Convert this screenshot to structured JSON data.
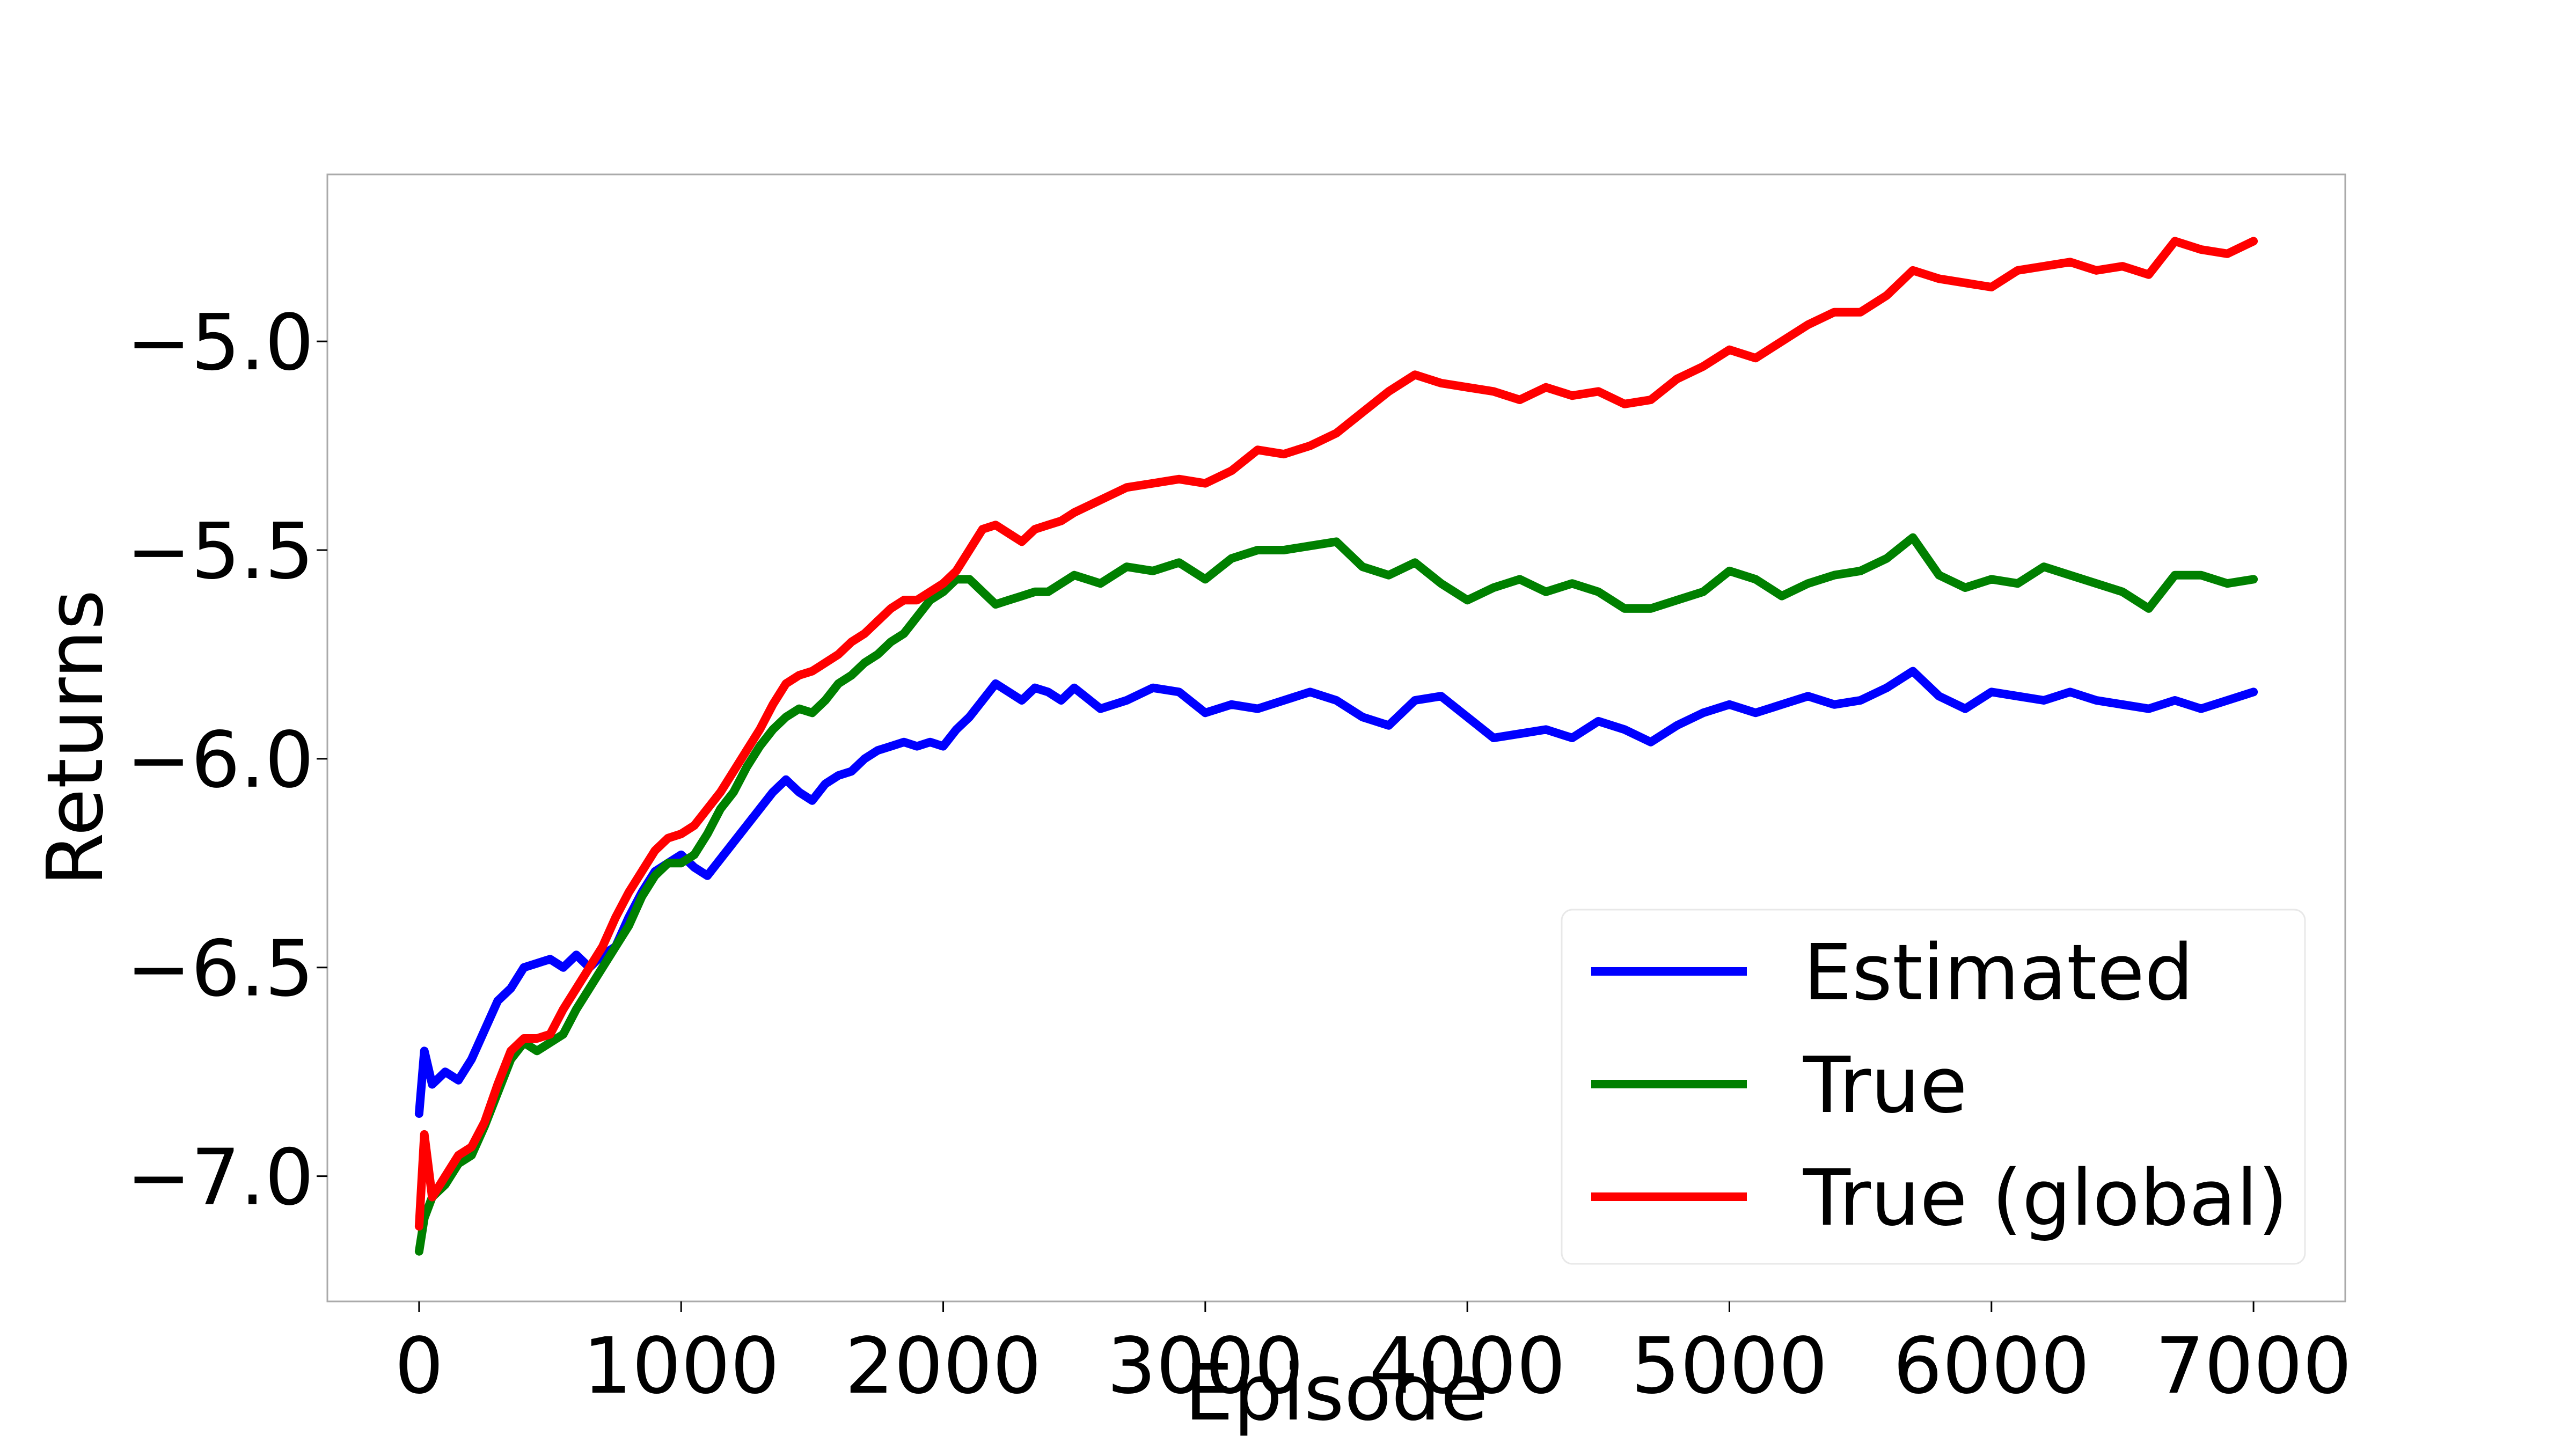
{
  "chart_data": {
    "type": "line",
    "title": "",
    "xlabel": "Episode",
    "ylabel": "Returns",
    "xlim": [
      -350,
      7350
    ],
    "ylim": [
      -7.3,
      -4.6
    ],
    "xticks": [
      0,
      1000,
      2000,
      3000,
      4000,
      5000,
      6000,
      7000
    ],
    "xtick_labels": [
      "0",
      "1000",
      "2000",
      "3000",
      "4000",
      "5000",
      "6000",
      "7000"
    ],
    "yticks": [
      -7.0,
      -6.5,
      -6.0,
      -5.5,
      -5.0
    ],
    "ytick_labels": [
      "−7.0",
      "−6.5",
      "−6.0",
      "−5.5",
      "−5.0"
    ],
    "grid": false,
    "legend_position": "lower-right",
    "series": [
      {
        "name": "Estimated",
        "color": "#0000ff",
        "x": [
          0,
          20,
          50,
          100,
          150,
          200,
          250,
          300,
          350,
          400,
          450,
          500,
          550,
          600,
          650,
          700,
          750,
          800,
          850,
          900,
          950,
          1000,
          1050,
          1100,
          1150,
          1200,
          1250,
          1300,
          1350,
          1400,
          1450,
          1500,
          1550,
          1600,
          1650,
          1700,
          1750,
          1800,
          1850,
          1900,
          1950,
          2000,
          2050,
          2100,
          2150,
          2200,
          2250,
          2300,
          2350,
          2400,
          2450,
          2500,
          2600,
          2700,
          2800,
          2900,
          3000,
          3100,
          3200,
          3300,
          3400,
          3500,
          3600,
          3700,
          3800,
          3900,
          4000,
          4100,
          4200,
          4300,
          4400,
          4500,
          4600,
          4700,
          4800,
          4900,
          5000,
          5100,
          5200,
          5300,
          5400,
          5500,
          5600,
          5700,
          5800,
          5900,
          6000,
          6100,
          6200,
          6300,
          6400,
          6500,
          6600,
          6700,
          6800,
          6900,
          7000
        ],
        "y": [
          -6.85,
          -6.7,
          -6.78,
          -6.75,
          -6.77,
          -6.72,
          -6.65,
          -6.58,
          -6.55,
          -6.5,
          -6.49,
          -6.48,
          -6.5,
          -6.47,
          -6.5,
          -6.47,
          -6.45,
          -6.38,
          -6.32,
          -6.27,
          -6.25,
          -6.23,
          -6.26,
          -6.28,
          -6.24,
          -6.2,
          -6.16,
          -6.12,
          -6.08,
          -6.05,
          -6.08,
          -6.1,
          -6.06,
          -6.04,
          -6.03,
          -6.0,
          -5.98,
          -5.97,
          -5.96,
          -5.97,
          -5.96,
          -5.97,
          -5.93,
          -5.9,
          -5.86,
          -5.82,
          -5.84,
          -5.86,
          -5.83,
          -5.84,
          -5.86,
          -5.83,
          -5.88,
          -5.86,
          -5.83,
          -5.84,
          -5.89,
          -5.87,
          -5.88,
          -5.86,
          -5.84,
          -5.86,
          -5.9,
          -5.92,
          -5.86,
          -5.85,
          -5.9,
          -5.95,
          -5.94,
          -5.93,
          -5.95,
          -5.91,
          -5.93,
          -5.96,
          -5.92,
          -5.89,
          -5.87,
          -5.89,
          -5.87,
          -5.85,
          -5.87,
          -5.86,
          -5.83,
          -5.79,
          -5.85,
          -5.88,
          -5.84,
          -5.85,
          -5.86,
          -5.84,
          -5.86,
          -5.87,
          -5.88,
          -5.86,
          -5.88,
          -5.86,
          -5.84
        ]
      },
      {
        "name": "True",
        "color": "#008000",
        "x": [
          0,
          20,
          50,
          100,
          150,
          200,
          250,
          300,
          350,
          400,
          450,
          500,
          550,
          600,
          650,
          700,
          750,
          800,
          850,
          900,
          950,
          1000,
          1050,
          1100,
          1150,
          1200,
          1250,
          1300,
          1350,
          1400,
          1450,
          1500,
          1550,
          1600,
          1650,
          1700,
          1750,
          1800,
          1850,
          1900,
          1950,
          2000,
          2050,
          2100,
          2150,
          2200,
          2250,
          2300,
          2350,
          2400,
          2450,
          2500,
          2600,
          2700,
          2800,
          2900,
          3000,
          3100,
          3200,
          3300,
          3400,
          3500,
          3600,
          3700,
          3800,
          3900,
          4000,
          4100,
          4200,
          4300,
          4400,
          4500,
          4600,
          4700,
          4800,
          4900,
          5000,
          5100,
          5200,
          5300,
          5400,
          5500,
          5600,
          5700,
          5800,
          5900,
          6000,
          6100,
          6200,
          6300,
          6400,
          6500,
          6600,
          6700,
          6800,
          6900,
          7000
        ],
        "y": [
          -7.18,
          -7.1,
          -7.05,
          -7.02,
          -6.97,
          -6.95,
          -6.88,
          -6.8,
          -6.72,
          -6.68,
          -6.7,
          -6.68,
          -6.66,
          -6.6,
          -6.55,
          -6.5,
          -6.45,
          -6.4,
          -6.33,
          -6.28,
          -6.25,
          -6.25,
          -6.23,
          -6.18,
          -6.12,
          -6.08,
          -6.02,
          -5.97,
          -5.93,
          -5.9,
          -5.88,
          -5.89,
          -5.86,
          -5.82,
          -5.8,
          -5.77,
          -5.75,
          -5.72,
          -5.7,
          -5.66,
          -5.62,
          -5.6,
          -5.57,
          -5.57,
          -5.6,
          -5.63,
          -5.62,
          -5.61,
          -5.6,
          -5.6,
          -5.58,
          -5.56,
          -5.58,
          -5.54,
          -5.55,
          -5.53,
          -5.57,
          -5.52,
          -5.5,
          -5.5,
          -5.49,
          -5.48,
          -5.54,
          -5.56,
          -5.53,
          -5.58,
          -5.62,
          -5.59,
          -5.57,
          -5.6,
          -5.58,
          -5.6,
          -5.64,
          -5.64,
          -5.62,
          -5.6,
          -5.55,
          -5.57,
          -5.61,
          -5.58,
          -5.56,
          -5.55,
          -5.52,
          -5.47,
          -5.56,
          -5.59,
          -5.57,
          -5.58,
          -5.54,
          -5.56,
          -5.58,
          -5.6,
          -5.64,
          -5.56,
          -5.56,
          -5.58,
          -5.57
        ]
      },
      {
        "name": "True (global)",
        "color": "#ff0000",
        "x": [
          0,
          20,
          50,
          100,
          150,
          200,
          250,
          300,
          350,
          400,
          450,
          500,
          550,
          600,
          650,
          700,
          750,
          800,
          850,
          900,
          950,
          1000,
          1050,
          1100,
          1150,
          1200,
          1250,
          1300,
          1350,
          1400,
          1450,
          1500,
          1550,
          1600,
          1650,
          1700,
          1750,
          1800,
          1850,
          1900,
          1950,
          2000,
          2050,
          2100,
          2150,
          2200,
          2250,
          2300,
          2350,
          2400,
          2450,
          2500,
          2600,
          2700,
          2800,
          2900,
          3000,
          3100,
          3200,
          3300,
          3400,
          3500,
          3600,
          3700,
          3800,
          3900,
          4000,
          4100,
          4200,
          4300,
          4400,
          4500,
          4600,
          4700,
          4800,
          4900,
          5000,
          5100,
          5200,
          5300,
          5400,
          5500,
          5600,
          5700,
          5800,
          5900,
          6000,
          6100,
          6200,
          6300,
          6400,
          6500,
          6600,
          6700,
          6800,
          6900,
          7000
        ],
        "y": [
          -7.12,
          -6.9,
          -7.05,
          -7.0,
          -6.95,
          -6.93,
          -6.87,
          -6.78,
          -6.7,
          -6.67,
          -6.67,
          -6.66,
          -6.6,
          -6.55,
          -6.5,
          -6.45,
          -6.38,
          -6.32,
          -6.27,
          -6.22,
          -6.19,
          -6.18,
          -6.16,
          -6.12,
          -6.08,
          -6.03,
          -5.98,
          -5.93,
          -5.87,
          -5.82,
          -5.8,
          -5.79,
          -5.77,
          -5.75,
          -5.72,
          -5.7,
          -5.67,
          -5.64,
          -5.62,
          -5.62,
          -5.6,
          -5.58,
          -5.55,
          -5.5,
          -5.45,
          -5.44,
          -5.46,
          -5.48,
          -5.45,
          -5.44,
          -5.43,
          -5.41,
          -5.38,
          -5.35,
          -5.34,
          -5.33,
          -5.34,
          -5.31,
          -5.26,
          -5.27,
          -5.25,
          -5.22,
          -5.17,
          -5.12,
          -5.08,
          -5.1,
          -5.11,
          -5.12,
          -5.14,
          -5.11,
          -5.13,
          -5.12,
          -5.15,
          -5.14,
          -5.09,
          -5.06,
          -5.02,
          -5.04,
          -5.0,
          -4.96,
          -4.93,
          -4.93,
          -4.89,
          -4.83,
          -4.85,
          -4.86,
          -4.87,
          -4.83,
          -4.82,
          -4.81,
          -4.83,
          -4.82,
          -4.84,
          -4.76,
          -4.78,
          -4.79,
          -4.76
        ]
      }
    ]
  }
}
